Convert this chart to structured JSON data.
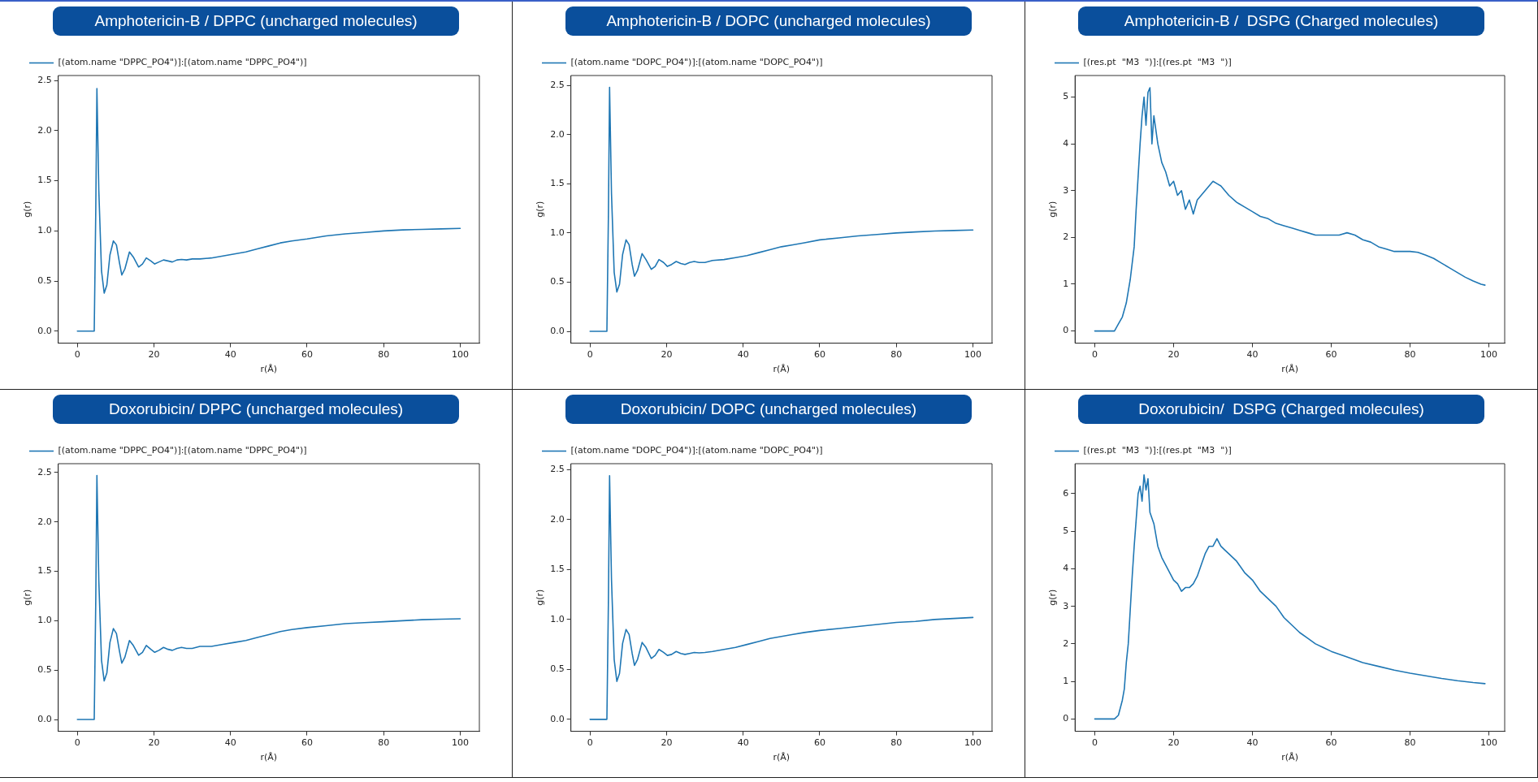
{
  "chart_data": [
    {
      "type": "line",
      "title": "Amphotericin-B / DPPC (uncharged molecules)",
      "xlabel": "r(Å)",
      "ylabel": "g(r)",
      "legend": "top left",
      "xlim": [
        -5,
        105
      ],
      "ylim": [
        -0.12,
        2.55
      ],
      "xticks": [
        0,
        20,
        40,
        60,
        80,
        100
      ],
      "yticks": [
        {
          "value": 0,
          "label": "0.0"
        },
        {
          "value": 0.5,
          "label": "0.5"
        },
        {
          "value": 1,
          "label": "1.0"
        },
        {
          "value": 1.5,
          "label": "1.5"
        },
        {
          "value": 2,
          "label": "2.0"
        },
        {
          "value": 2.5,
          "label": "2.5"
        }
      ],
      "series": [
        {
          "name": "[(atom.name \"DPPC_PO4\")]:[(atom.name \"DPPC_PO4\")]",
          "color": "#1f77b4",
          "x": [
            0,
            4.4,
            4.8,
            5.1,
            5.6,
            6.3,
            7.0,
            7.7,
            8.5,
            9.4,
            10.2,
            11.0,
            11.6,
            12.4,
            13.6,
            14.6,
            16.0,
            17.0,
            18.0,
            19.2,
            20.2,
            21.3,
            22.5,
            23.7,
            24.8,
            26.0,
            27.2,
            28.5,
            30,
            32,
            35,
            38,
            41,
            44,
            47,
            50,
            53,
            56,
            60,
            65,
            70,
            75,
            80,
            85,
            90,
            95,
            100
          ],
          "values": [
            0,
            0,
            1.2,
            2.42,
            1.4,
            0.6,
            0.38,
            0.46,
            0.76,
            0.9,
            0.86,
            0.68,
            0.56,
            0.62,
            0.79,
            0.74,
            0.64,
            0.67,
            0.73,
            0.7,
            0.67,
            0.69,
            0.71,
            0.7,
            0.69,
            0.71,
            0.715,
            0.71,
            0.72,
            0.72,
            0.73,
            0.75,
            0.77,
            0.79,
            0.82,
            0.85,
            0.88,
            0.9,
            0.92,
            0.95,
            0.97,
            0.985,
            1.0,
            1.01,
            1.015,
            1.02,
            1.025
          ]
        }
      ]
    },
    {
      "type": "line",
      "title": "Amphotericin-B / DOPC (uncharged molecules)",
      "xlabel": "r(Å)",
      "ylabel": "g(r)",
      "legend": "top left",
      "xlim": [
        -5,
        105
      ],
      "ylim": [
        -0.12,
        2.6
      ],
      "xticks": [
        0,
        20,
        40,
        60,
        80,
        100
      ],
      "yticks": [
        {
          "value": 0,
          "label": "0.0"
        },
        {
          "value": 0.5,
          "label": "0.5"
        },
        {
          "value": 1,
          "label": "1.0"
        },
        {
          "value": 1.5,
          "label": "1.5"
        },
        {
          "value": 2,
          "label": "2.0"
        },
        {
          "value": 2.5,
          "label": "2.5"
        }
      ],
      "series": [
        {
          "name": "[(atom.name \"DOPC_PO4\")]:[(atom.name \"DOPC_PO4\")]",
          "color": "#1f77b4",
          "x": [
            0,
            4.4,
            4.8,
            5.1,
            5.6,
            6.3,
            7.0,
            7.7,
            8.5,
            9.4,
            10.2,
            11.0,
            11.6,
            12.4,
            13.6,
            14.6,
            16.0,
            17.0,
            18.0,
            19.2,
            20.2,
            21.3,
            22.5,
            23.7,
            24.8,
            26.0,
            27.2,
            28.5,
            30,
            32,
            35,
            38,
            41,
            44,
            47,
            50,
            53,
            56,
            60,
            65,
            70,
            75,
            80,
            85,
            90,
            95,
            100
          ],
          "values": [
            0,
            0,
            1.2,
            2.48,
            1.4,
            0.6,
            0.4,
            0.48,
            0.78,
            0.93,
            0.88,
            0.68,
            0.56,
            0.62,
            0.79,
            0.73,
            0.63,
            0.66,
            0.73,
            0.7,
            0.66,
            0.68,
            0.71,
            0.69,
            0.68,
            0.7,
            0.71,
            0.7,
            0.7,
            0.72,
            0.73,
            0.75,
            0.77,
            0.8,
            0.83,
            0.86,
            0.88,
            0.9,
            0.93,
            0.95,
            0.97,
            0.985,
            1.0,
            1.01,
            1.02,
            1.025,
            1.03
          ]
        }
      ]
    },
    {
      "type": "line",
      "title": "Amphotericin-B /  DSPG (Charged molecules)",
      "xlabel": "r(Å)",
      "ylabel": "g(r)",
      "legend": "top left",
      "xlim": [
        -5,
        104
      ],
      "ylim": [
        -0.26,
        5.46
      ],
      "xticks": [
        0,
        20,
        40,
        60,
        80,
        100
      ],
      "yticks": [
        0,
        1,
        2,
        3,
        4,
        5
      ],
      "series": [
        {
          "name": "[(res.pt  \"M3  \")]:[(res.pt  \"M3  \")]",
          "color": "#1f77b4",
          "x": [
            0,
            5,
            6,
            7,
            8,
            9,
            10,
            10.5,
            11,
            11.5,
            12,
            12.5,
            13,
            13.5,
            14,
            14.5,
            15,
            16,
            17,
            18,
            19,
            20,
            21,
            22,
            23,
            24,
            25,
            26,
            27,
            28,
            29,
            30,
            31,
            32,
            34,
            36,
            38,
            40,
            42,
            44,
            46,
            48,
            50,
            52,
            54,
            56,
            58,
            60,
            62,
            64,
            66,
            68,
            70,
            72,
            74,
            76,
            78,
            80,
            82,
            84,
            86,
            88,
            90,
            92,
            94,
            96,
            98,
            99
          ],
          "values": [
            0,
            0,
            0.15,
            0.3,
            0.6,
            1.1,
            1.8,
            2.6,
            3.3,
            4.0,
            4.6,
            5.0,
            4.4,
            5.1,
            5.2,
            4.0,
            4.6,
            4.0,
            3.6,
            3.4,
            3.1,
            3.2,
            2.9,
            3.0,
            2.6,
            2.8,
            2.5,
            2.8,
            2.9,
            3.0,
            3.1,
            3.2,
            3.15,
            3.1,
            2.9,
            2.75,
            2.65,
            2.55,
            2.45,
            2.4,
            2.3,
            2.25,
            2.2,
            2.15,
            2.1,
            2.05,
            2.05,
            2.05,
            2.05,
            2.1,
            2.05,
            1.95,
            1.9,
            1.8,
            1.75,
            1.7,
            1.7,
            1.7,
            1.68,
            1.62,
            1.55,
            1.45,
            1.35,
            1.25,
            1.15,
            1.07,
            1.0,
            0.98
          ]
        }
      ]
    },
    {
      "type": "line",
      "title": "Doxorubicin/ DPPC (uncharged molecules)",
      "xlabel": "r(Å)",
      "ylabel": "g(r)",
      "legend": "top left",
      "xlim": [
        -5,
        105
      ],
      "ylim": [
        -0.12,
        2.59
      ],
      "xticks": [
        0,
        20,
        40,
        60,
        80,
        100
      ],
      "yticks": [
        {
          "value": 0,
          "label": "0.0"
        },
        {
          "value": 0.5,
          "label": "0.5"
        },
        {
          "value": 1,
          "label": "1.0"
        },
        {
          "value": 1.5,
          "label": "1.5"
        },
        {
          "value": 2,
          "label": "2.0"
        },
        {
          "value": 2.5,
          "label": "2.5"
        }
      ],
      "series": [
        {
          "name": "[(atom.name \"DPPC_PO4\")]:[(atom.name \"DPPC_PO4\")]",
          "color": "#1f77b4",
          "x": [
            0,
            4.4,
            4.8,
            5.1,
            5.6,
            6.3,
            7.0,
            7.7,
            8.5,
            9.4,
            10.2,
            11.0,
            11.6,
            12.4,
            13.6,
            14.6,
            16.0,
            17.0,
            18.0,
            19.2,
            20.2,
            21.3,
            22.5,
            23.7,
            24.8,
            26.0,
            27.2,
            28.5,
            30,
            32,
            35,
            38,
            41,
            44,
            47,
            50,
            53,
            56,
            60,
            65,
            70,
            75,
            80,
            85,
            90,
            95,
            100
          ],
          "values": [
            0,
            0,
            1.2,
            2.47,
            1.4,
            0.6,
            0.39,
            0.47,
            0.78,
            0.92,
            0.87,
            0.69,
            0.57,
            0.63,
            0.8,
            0.75,
            0.65,
            0.68,
            0.75,
            0.71,
            0.68,
            0.7,
            0.73,
            0.71,
            0.7,
            0.72,
            0.73,
            0.72,
            0.72,
            0.74,
            0.74,
            0.76,
            0.78,
            0.8,
            0.83,
            0.86,
            0.89,
            0.91,
            0.93,
            0.95,
            0.97,
            0.98,
            0.99,
            1.0,
            1.01,
            1.015,
            1.02
          ]
        }
      ]
    },
    {
      "type": "line",
      "title": "Doxorubicin/ DOPC (uncharged molecules)",
      "xlabel": "r(Å)",
      "ylabel": "g(r)",
      "legend": "top left",
      "xlim": [
        -5,
        105
      ],
      "ylim": [
        -0.12,
        2.56
      ],
      "xticks": [
        0,
        20,
        40,
        60,
        80,
        100
      ],
      "yticks": [
        {
          "value": 0,
          "label": "0.0"
        },
        {
          "value": 0.5,
          "label": "0.5"
        },
        {
          "value": 1,
          "label": "1.0"
        },
        {
          "value": 1.5,
          "label": "1.5"
        },
        {
          "value": 2,
          "label": "2.0"
        },
        {
          "value": 2.5,
          "label": "2.5"
        }
      ],
      "series": [
        {
          "name": "[(atom.name \"DOPC_PO4\")]:[(atom.name \"DOPC_PO4\")]",
          "color": "#1f77b4",
          "x": [
            0,
            4.4,
            4.8,
            5.1,
            5.6,
            6.3,
            7.0,
            7.7,
            8.5,
            9.4,
            10.2,
            11.0,
            11.6,
            12.4,
            13.6,
            14.6,
            16.0,
            17.0,
            18.0,
            19.2,
            20.2,
            21.3,
            22.5,
            23.7,
            24.8,
            26.0,
            27.2,
            28.5,
            30,
            32,
            35,
            38,
            41,
            44,
            47,
            50,
            53,
            56,
            60,
            65,
            70,
            75,
            80,
            85,
            90,
            95,
            100
          ],
          "values": [
            0,
            0,
            1.2,
            2.44,
            1.4,
            0.6,
            0.38,
            0.46,
            0.76,
            0.9,
            0.85,
            0.66,
            0.54,
            0.6,
            0.77,
            0.72,
            0.61,
            0.64,
            0.7,
            0.67,
            0.64,
            0.65,
            0.68,
            0.66,
            0.65,
            0.66,
            0.67,
            0.665,
            0.67,
            0.68,
            0.7,
            0.72,
            0.75,
            0.78,
            0.81,
            0.83,
            0.85,
            0.87,
            0.89,
            0.91,
            0.93,
            0.95,
            0.97,
            0.98,
            1.0,
            1.01,
            1.02
          ]
        }
      ]
    },
    {
      "type": "line",
      "title": "Doxorubicin/  DSPG (Charged molecules)",
      "xlabel": "r(Å)",
      "ylabel": "g(r)",
      "legend": "top left",
      "xlim": [
        -5,
        104
      ],
      "ylim": [
        -0.33,
        6.8
      ],
      "xticks": [
        0,
        20,
        40,
        60,
        80,
        100
      ],
      "yticks": [
        0,
        1,
        2,
        3,
        4,
        5,
        6
      ],
      "series": [
        {
          "name": "[(res.pt  \"M3  \")]:[(res.pt  \"M3  \")]",
          "color": "#1f77b4",
          "x": [
            0,
            5,
            6,
            7,
            7.5,
            8,
            8.5,
            9,
            9.5,
            10,
            10.5,
            11,
            11.5,
            12,
            12.5,
            13,
            13.5,
            14,
            15,
            16,
            17,
            18,
            19,
            20,
            21,
            22,
            23,
            24,
            25,
            26,
            27,
            28,
            29,
            30,
            31,
            32,
            33,
            34,
            36,
            38,
            40,
            42,
            44,
            46,
            48,
            50,
            52,
            54,
            56,
            58,
            60,
            64,
            68,
            72,
            76,
            80,
            84,
            88,
            92,
            96,
            99
          ],
          "values": [
            0,
            0,
            0.1,
            0.5,
            0.8,
            1.5,
            2.0,
            2.9,
            3.8,
            4.6,
            5.3,
            6.0,
            6.2,
            5.8,
            6.5,
            6.1,
            6.4,
            5.5,
            5.2,
            4.6,
            4.3,
            4.1,
            3.9,
            3.7,
            3.6,
            3.4,
            3.5,
            3.5,
            3.6,
            3.8,
            4.1,
            4.4,
            4.6,
            4.6,
            4.8,
            4.6,
            4.5,
            4.4,
            4.2,
            3.9,
            3.7,
            3.4,
            3.2,
            3.0,
            2.7,
            2.5,
            2.3,
            2.15,
            2.0,
            1.9,
            1.8,
            1.65,
            1.5,
            1.4,
            1.3,
            1.22,
            1.15,
            1.08,
            1.02,
            0.97,
            0.94
          ]
        }
      ]
    }
  ]
}
